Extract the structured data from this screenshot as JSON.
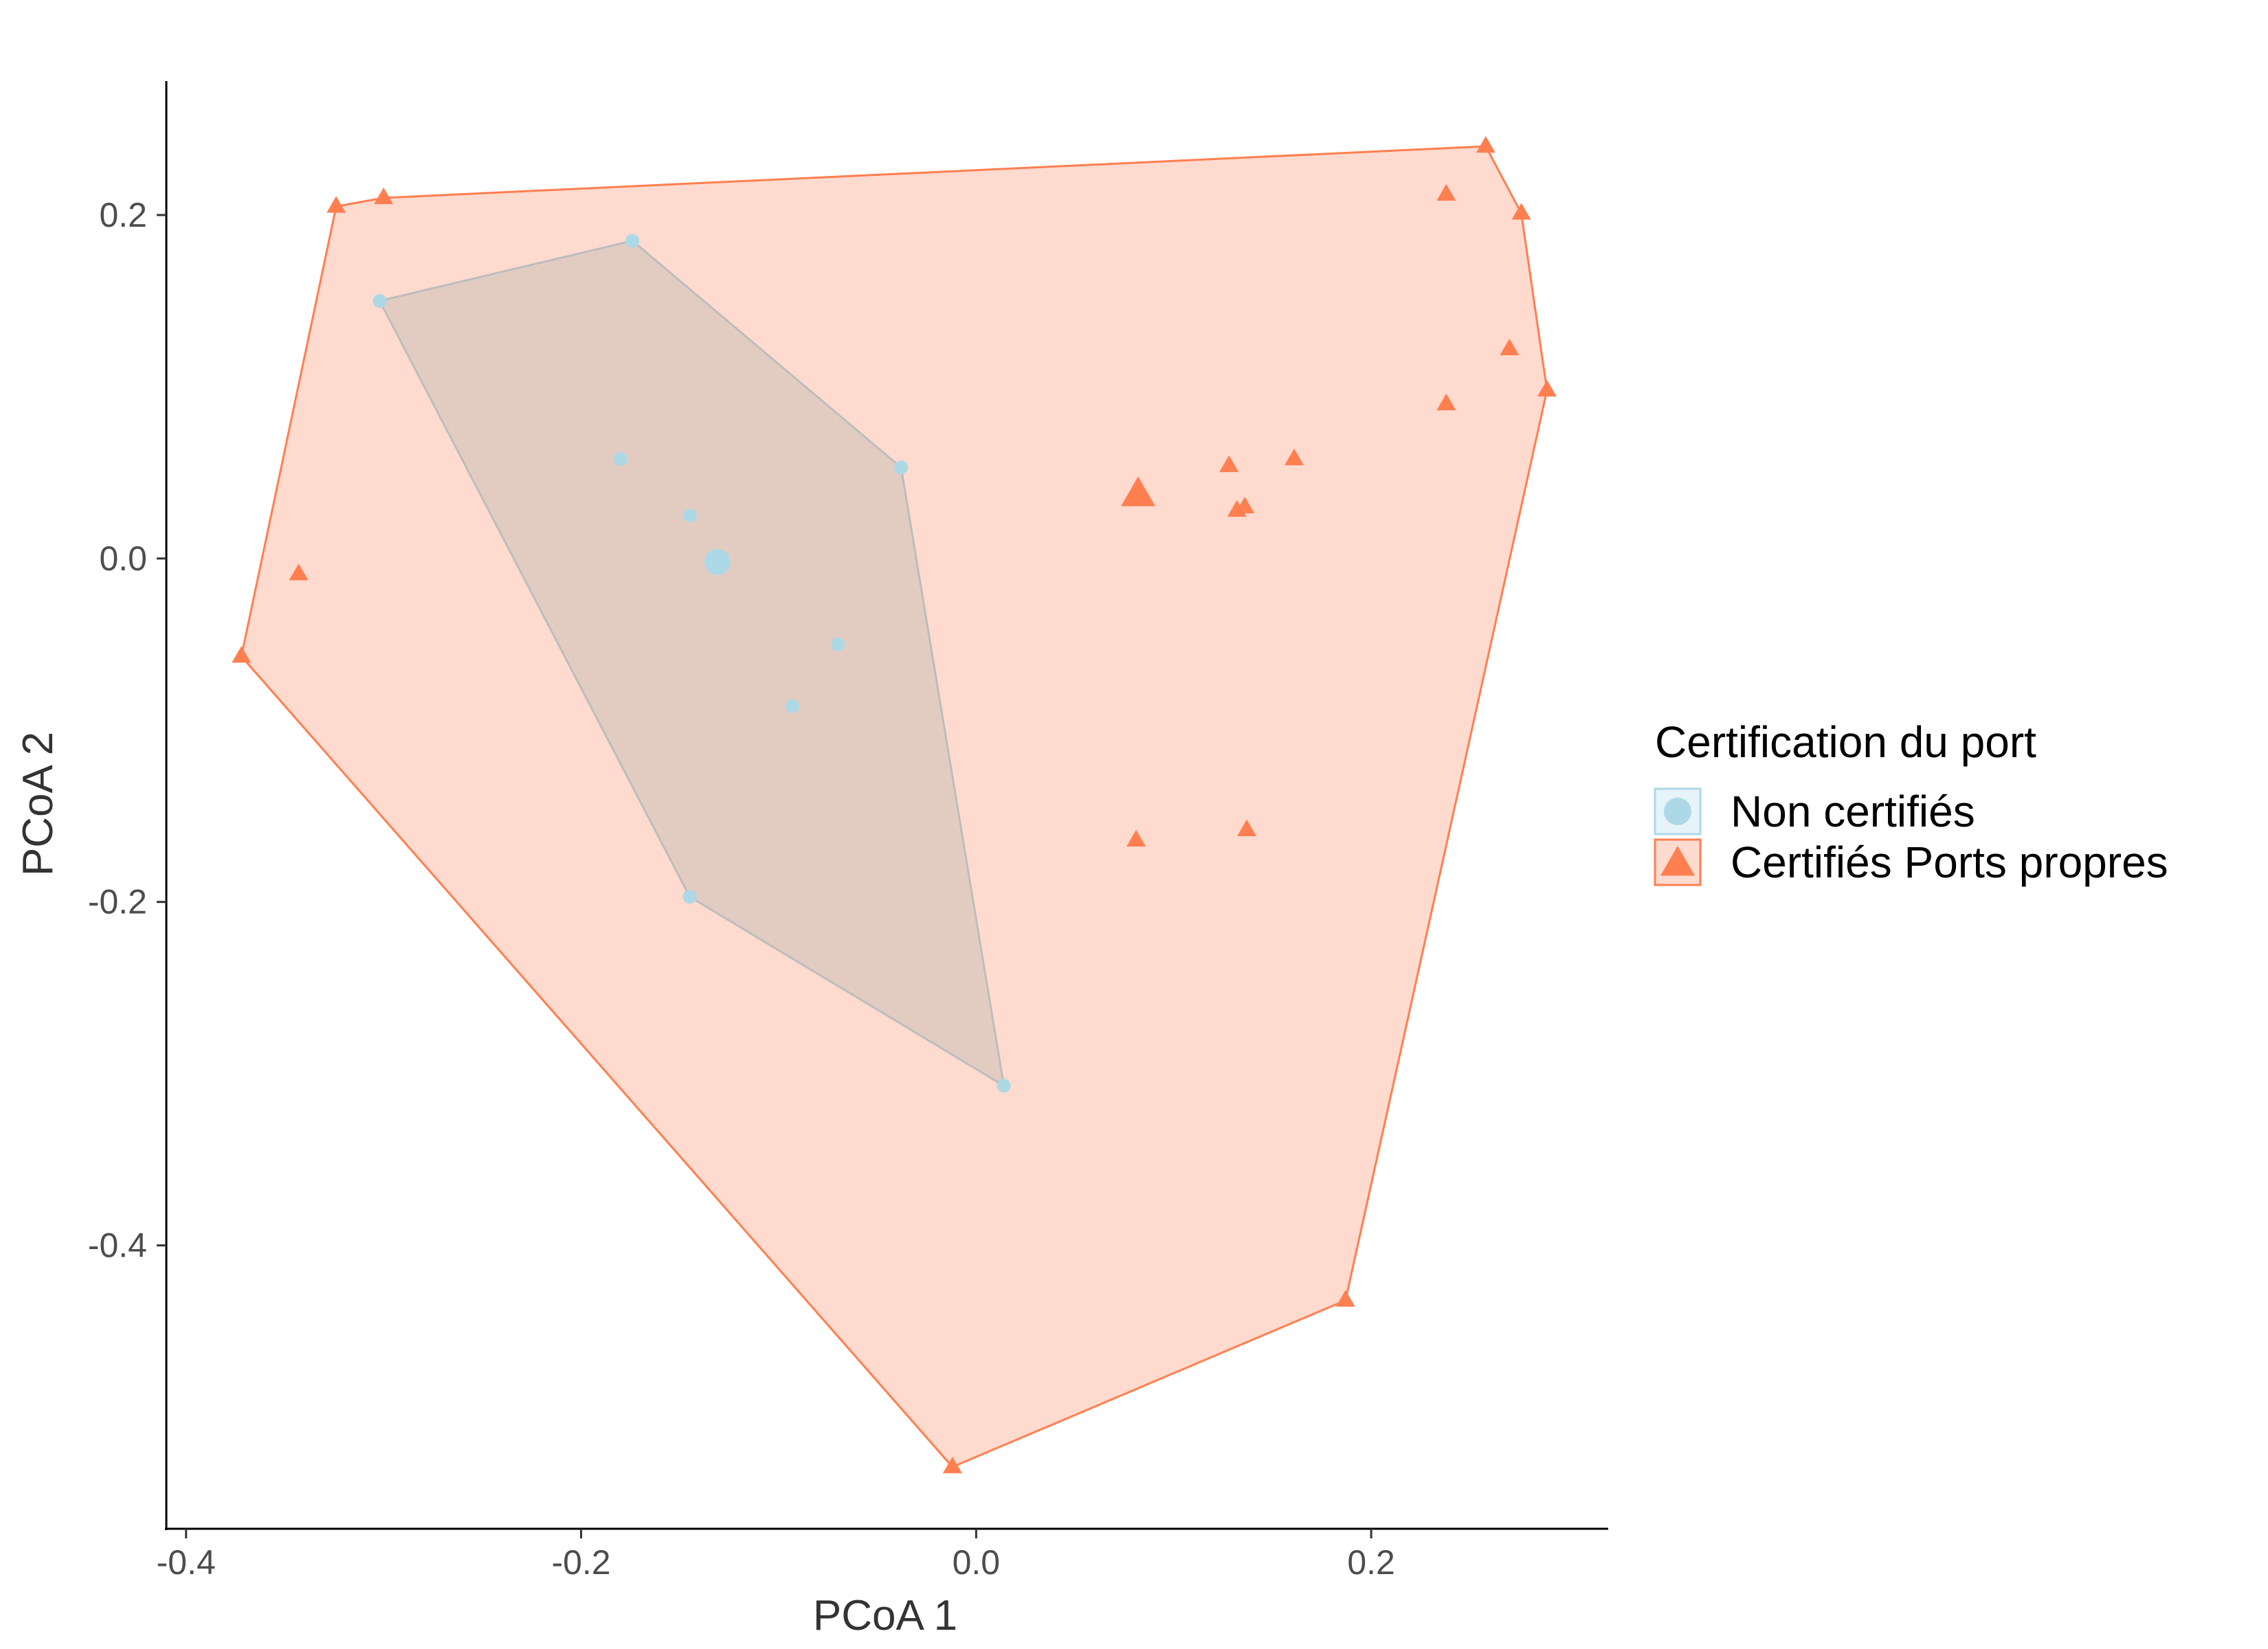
{
  "chart_data": {
    "type": "scatter",
    "xlabel": "PCoA 1",
    "ylabel": "PCoA 2",
    "xlim": [
      -0.41,
      0.32
    ],
    "ylim": [
      -0.565,
      0.278
    ],
    "x_ticks": [
      -0.4,
      -0.2,
      0.0,
      0.2
    ],
    "x_tick_labels": [
      "-0.4",
      "-0.2",
      "0.0",
      "0.2"
    ],
    "y_ticks": [
      -0.4,
      -0.2,
      0.0,
      0.2
    ],
    "y_tick_labels": [
      "-0.4",
      "-0.2",
      "0.0",
      "0.2"
    ],
    "grid": false,
    "legend": {
      "title": "Certification du port",
      "position": "right"
    },
    "series": [
      {
        "name": "Non certifiés",
        "marker": "circle",
        "color": "#ADD8E6",
        "hull_fill": "#DDC9BF",
        "hull_stroke": "#BDBDBD",
        "points": [
          [
            -0.302,
            0.15
          ],
          [
            -0.174,
            0.185
          ],
          [
            -0.038,
            0.053
          ],
          [
            0.014,
            -0.307
          ],
          [
            -0.145,
            -0.197
          ],
          [
            -0.18,
            0.058
          ],
          [
            -0.145,
            0.025
          ],
          [
            -0.07,
            -0.05
          ],
          [
            -0.093,
            -0.086
          ]
        ],
        "hull": [
          [
            -0.302,
            0.15
          ],
          [
            -0.174,
            0.185
          ],
          [
            -0.038,
            0.053
          ],
          [
            0.014,
            -0.307
          ],
          [
            -0.145,
            -0.197
          ]
        ],
        "centroid": [
          -0.131,
          -0.002
        ]
      },
      {
        "name": "Certifiés Ports propres",
        "marker": "triangle",
        "color": "#FF7F50",
        "hull_fill": "#FFDACF",
        "hull_stroke": "#FF7F50",
        "points": [
          [
            -0.324,
            0.205
          ],
          [
            -0.3,
            0.21
          ],
          [
            0.258,
            0.24
          ],
          [
            0.276,
            0.201
          ],
          [
            0.289,
            0.098
          ],
          [
            0.187,
            -0.432
          ],
          [
            -0.012,
            -0.529
          ],
          [
            -0.372,
            -0.057
          ],
          [
            -0.343,
            -0.009
          ],
          [
            0.238,
            0.212
          ],
          [
            0.27,
            0.122
          ],
          [
            0.238,
            0.09
          ],
          [
            0.128,
            0.054
          ],
          [
            0.161,
            0.058
          ],
          [
            0.132,
            0.028
          ],
          [
            0.136,
            0.03
          ],
          [
            0.081,
            -0.164
          ],
          [
            0.137,
            -0.158
          ]
        ],
        "hull": [
          [
            -0.324,
            0.205
          ],
          [
            -0.3,
            0.21
          ],
          [
            0.258,
            0.24
          ],
          [
            0.276,
            0.201
          ],
          [
            0.289,
            0.098
          ],
          [
            0.187,
            -0.432
          ],
          [
            -0.012,
            -0.529
          ],
          [
            -0.372,
            -0.057
          ]
        ],
        "centroid": [
          0.082,
          0.037
        ]
      }
    ]
  }
}
